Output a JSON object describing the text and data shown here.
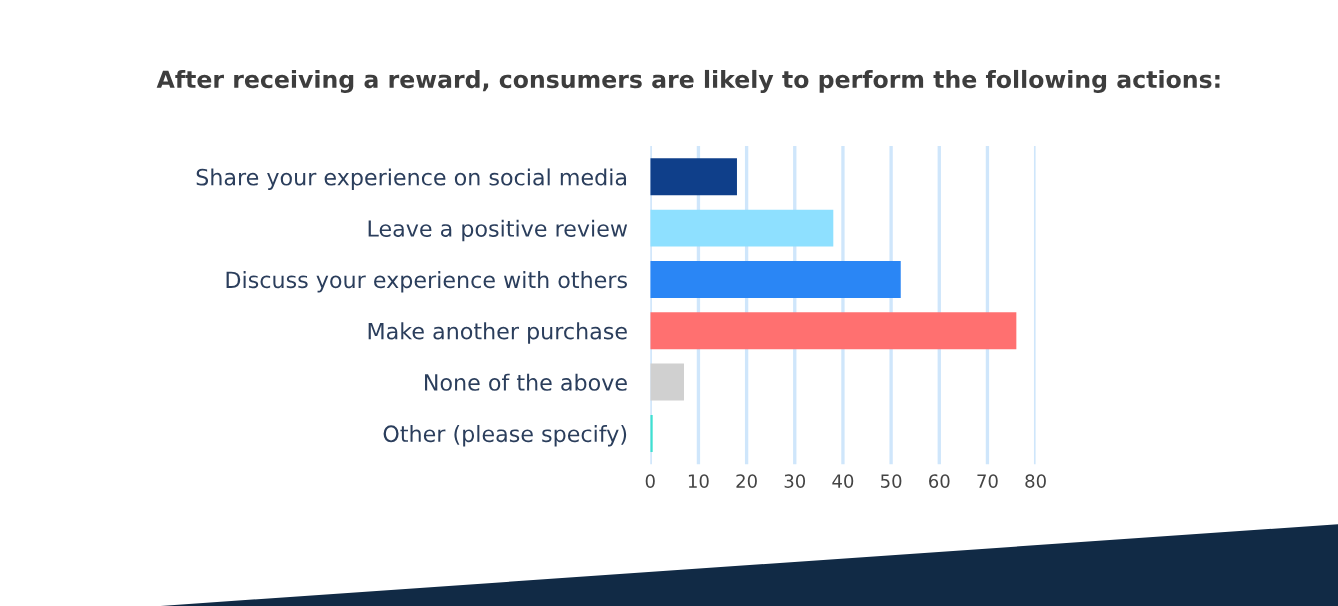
{
  "chart_data": {
    "type": "bar",
    "orientation": "horizontal",
    "title": "After receiving a reward, consumers are likely to perform the following actions:",
    "categories": [
      "Share your experience on social media",
      "Leave a positive review",
      "Discuss your experience with others",
      "Make another purchase",
      "None of the above",
      "Other (please specify)"
    ],
    "values": [
      18,
      38,
      52,
      76,
      7,
      0.5
    ],
    "colors": [
      "#0f3f8a",
      "#8ee0ff",
      "#2a86f5",
      "#ff7070",
      "#d0d0d0",
      "#3fe0d0"
    ],
    "xlim": [
      0,
      80
    ],
    "xticks": [
      0,
      10,
      20,
      30,
      40,
      50,
      60,
      70,
      80
    ],
    "grid": "x"
  }
}
